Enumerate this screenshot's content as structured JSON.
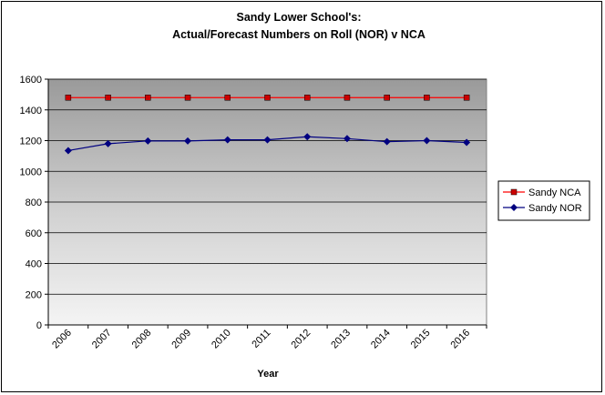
{
  "chart_data": {
    "type": "line",
    "title": "Sandy Lower School's:",
    "subtitle": "Actual/Forecast Numbers on Roll (NOR) v NCA",
    "xlabel": "Year",
    "ylabel": "",
    "categories": [
      "2006",
      "2007",
      "2008",
      "2009",
      "2010",
      "2011",
      "2012",
      "2013",
      "2014",
      "2015",
      "2016"
    ],
    "ylim": [
      0,
      1600
    ],
    "yticks": [
      0,
      200,
      400,
      600,
      800,
      1000,
      1200,
      1400,
      1600
    ],
    "grid": true,
    "legend_position": "right",
    "series": [
      {
        "name": "Sandy NCA",
        "color": "#ff0000",
        "marker_color": "#cc0000",
        "marker": "square",
        "values": [
          1480,
          1480,
          1480,
          1480,
          1480,
          1480,
          1480,
          1480,
          1480,
          1480,
          1480
        ]
      },
      {
        "name": "Sandy NOR",
        "color": "#000080",
        "marker_color": "#000080",
        "marker": "diamond",
        "values": [
          1135,
          1180,
          1198,
          1198,
          1205,
          1205,
          1225,
          1213,
          1193,
          1200,
          1188
        ]
      }
    ]
  }
}
